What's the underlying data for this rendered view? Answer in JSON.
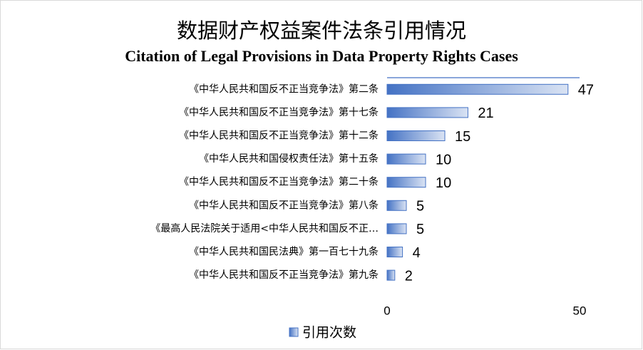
{
  "chart_data": {
    "type": "hbar",
    "title": "数据财产权益案件法条引用情况",
    "subtitle": "Citation of Legal Provisions in Data Property Rights Cases",
    "categories": [
      "《中华人民共和国反不正当竞争法》第二条",
      "《中华人民共和国反不正当竞争法》第十七条",
      "《中华人民共和国反不正当竞争法》第十二条",
      "《中华人民共和国侵权责任法》第十五条",
      "《中华人民共和国反不正当竞争法》第二十条",
      "《中华人民共和国反不正当竞争法》第八条",
      "《最高人民法院关于适用<中华人民共和国反不正…",
      "《中华人民共和国民法典》第一百七十九条",
      "《中华人民共和国反不正当竞争法》第九条"
    ],
    "series": [
      {
        "name": "引用次数",
        "color": "#4472c4",
        "values": [
          47,
          21,
          15,
          10,
          10,
          5,
          5,
          4,
          2
        ]
      }
    ],
    "xlim": [
      0,
      50
    ],
    "xticks": [
      0,
      50
    ],
    "legend": "bottom"
  }
}
